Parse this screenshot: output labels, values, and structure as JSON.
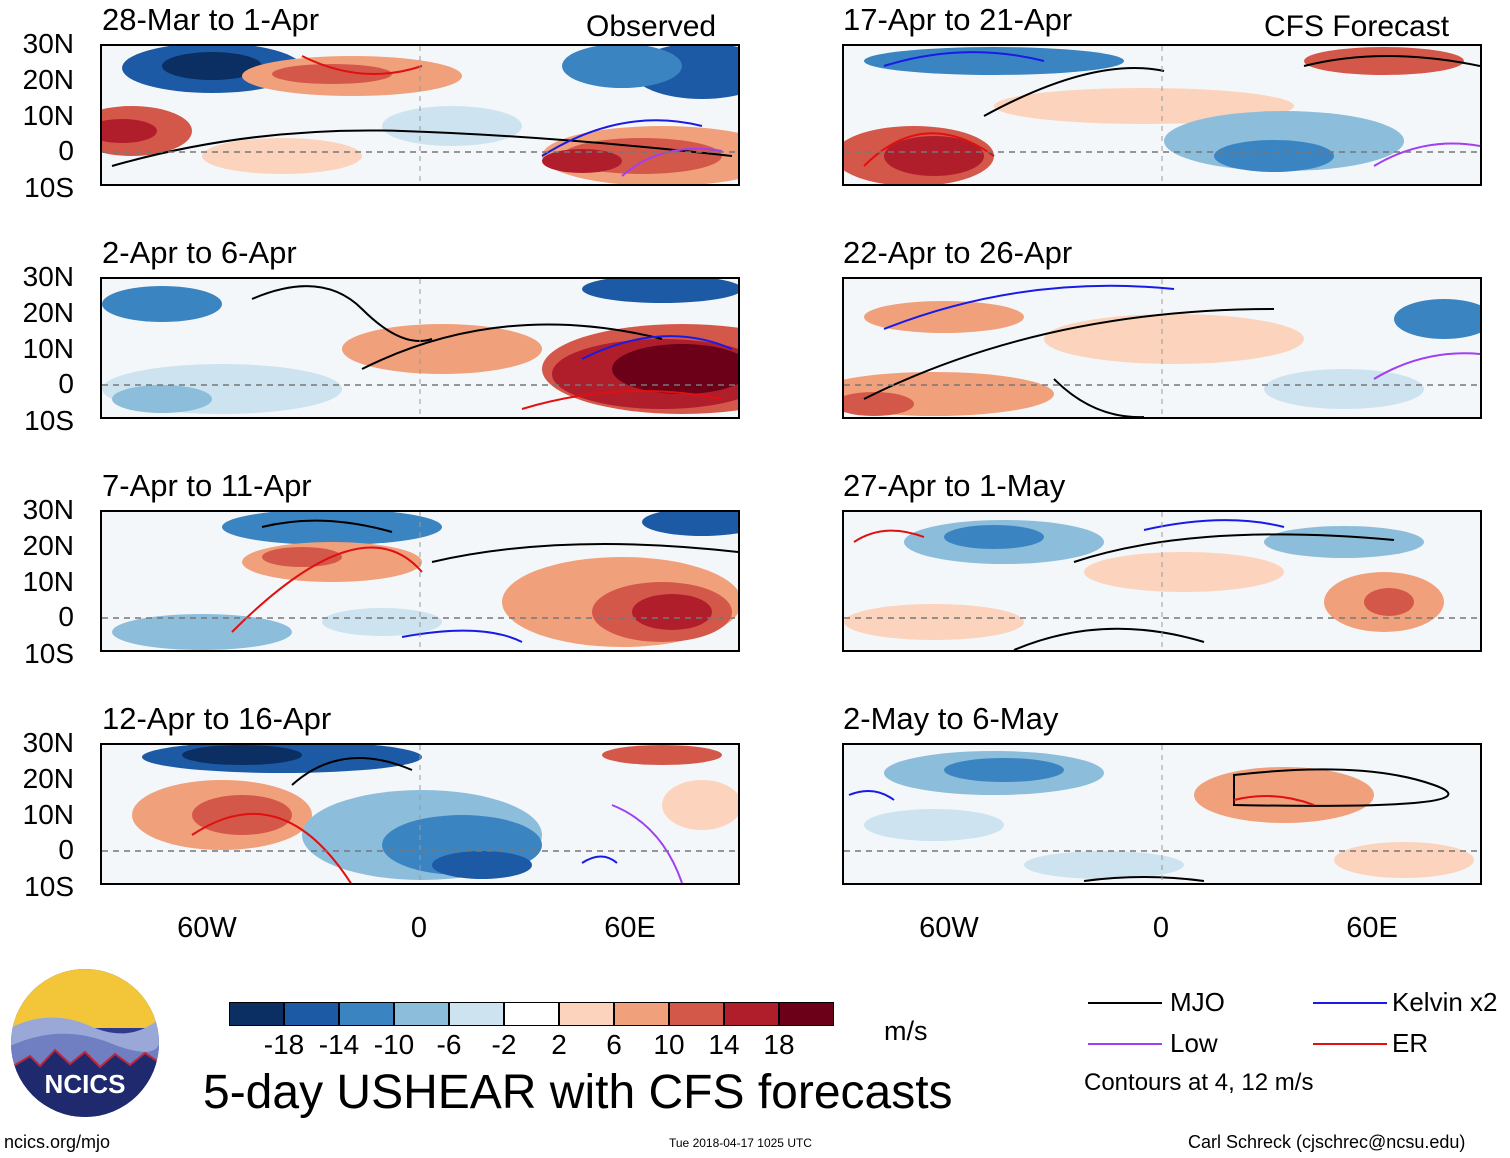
{
  "observed_label": "Observed",
  "forecast_label": "CFS Forecast",
  "lat_labels": [
    "30N",
    "20N",
    "10N",
    "0",
    "10S"
  ],
  "lon_labels": [
    "60W",
    "0",
    "60E"
  ],
  "panels": [
    {
      "title": "28-Mar to 1-Apr",
      "column": "observed"
    },
    {
      "title": "2-Apr to 6-Apr",
      "column": "observed"
    },
    {
      "title": "7-Apr to 11-Apr",
      "column": "observed"
    },
    {
      "title": "12-Apr to 16-Apr",
      "column": "observed"
    },
    {
      "title": "17-Apr to 21-Apr",
      "column": "forecast"
    },
    {
      "title": "22-Apr to 26-Apr",
      "column": "forecast"
    },
    {
      "title": "27-Apr to 1-May",
      "column": "forecast"
    },
    {
      "title": "2-May to 6-May",
      "column": "forecast"
    }
  ],
  "colorbar": {
    "labels": [
      "-18",
      "-14",
      "-10",
      "-6",
      "-2",
      "2",
      "6",
      "10",
      "14",
      "18"
    ],
    "colors": [
      "#0b2f63",
      "#1d5aa6",
      "#3b84c2",
      "#8cbddb",
      "#cde3f0",
      "#ffffff",
      "#fcd3bd",
      "#f1a07c",
      "#d4584a",
      "#b01e2c",
      "#6b0018"
    ],
    "units": "m/s"
  },
  "legend": {
    "items": [
      {
        "label": "MJO",
        "color": "#000000"
      },
      {
        "label": "Kelvin x2",
        "color": "#1a1ae6"
      },
      {
        "label": "Low",
        "color": "#a040f0"
      },
      {
        "label": "ER",
        "color": "#e01010"
      }
    ],
    "note": "Contours at 4, 12 m/s"
  },
  "main_title": "5-day USHEAR with CFS forecasts",
  "logo_text": "NCICS",
  "footer": {
    "left": "ncics.org/mjo",
    "center": "Tue 2018-04-17 1025 UTC",
    "right": "Carl Schreck (cjschrec@ncsu.edu)"
  }
}
